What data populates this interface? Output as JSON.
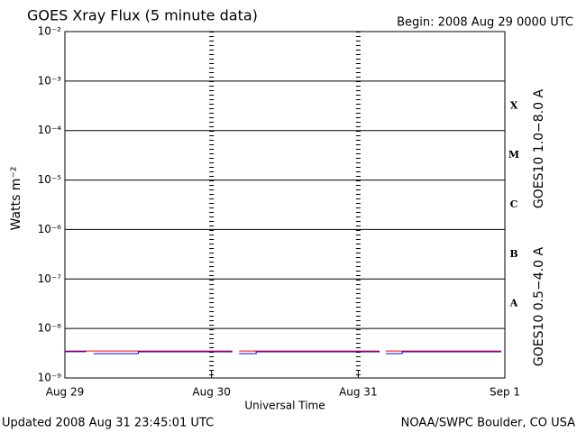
{
  "chart_data": {
    "type": "line",
    "title": "GOES Xray Flux (5 minute data)",
    "subtitle": "Begin:  2008 Aug 29 0000 UTC",
    "ylabel": "Watts m⁻²",
    "xlabel": "Universal Time",
    "footer_left": "Updated 2008 Aug 31 23:45:01 UTC",
    "footer_right": "NOAA/SWPC Boulder, CO USA",
    "log_y": true,
    "grid": true,
    "xlim": [
      0,
      72
    ],
    "xticks": [
      {
        "value": 0,
        "label": "Aug 29"
      },
      {
        "value": 24,
        "label": "Aug 30"
      },
      {
        "value": 48,
        "label": "Aug 31"
      },
      {
        "value": 72,
        "label": "Sep 1"
      }
    ],
    "ylim": [
      1e-09,
      0.01
    ],
    "yticks": [
      {
        "value": 1e-09,
        "label": "10⁻⁹"
      },
      {
        "value": 1e-08,
        "label": "10⁻⁸"
      },
      {
        "value": 1e-07,
        "label": "10⁻⁷"
      },
      {
        "value": 1e-06,
        "label": "10⁻⁶"
      },
      {
        "value": 1e-05,
        "label": "10⁻⁵"
      },
      {
        "value": 0.0001,
        "label": "10⁻⁴"
      },
      {
        "value": 0.001,
        "label": "10⁻³"
      },
      {
        "value": 0.01,
        "label": "10⁻²"
      }
    ],
    "flare_classes": [
      {
        "label": "A",
        "value": 1e-08
      },
      {
        "label": "B",
        "value": 1e-07
      },
      {
        "label": "C",
        "value": 1e-06
      },
      {
        "label": "M",
        "value": 1e-05
      },
      {
        "label": "X",
        "value": 0.0001
      }
    ],
    "series": [
      {
        "name": "GOES10 1.0−8.0 A",
        "color": "#ff0000",
        "x": [
          0,
          27.4,
          null,
          28.5,
          51.5,
          null,
          52.5,
          71.4
        ],
        "values": [
          3.5e-09,
          3.5e-09,
          null,
          3.5e-09,
          3.5e-09,
          null,
          3.5e-09,
          3.5e-09
        ]
      },
      {
        "name": "GOES10 0.5−4.0 A",
        "color": "#0000ff",
        "x": [
          0,
          3.5,
          null,
          4.7,
          12,
          12,
          27.4,
          null,
          28.5,
          31.3,
          31.3,
          51.5,
          null,
          52.5,
          55.2,
          55.2,
          71.4
        ],
        "values": [
          3.4e-09,
          3.4e-09,
          null,
          3.1e-09,
          3.1e-09,
          3.37e-09,
          3.37e-09,
          null,
          3.1e-09,
          3.1e-09,
          3.37e-09,
          3.37e-09,
          null,
          3.1e-09,
          3.1e-09,
          3.37e-09,
          3.37e-09
        ]
      }
    ]
  }
}
